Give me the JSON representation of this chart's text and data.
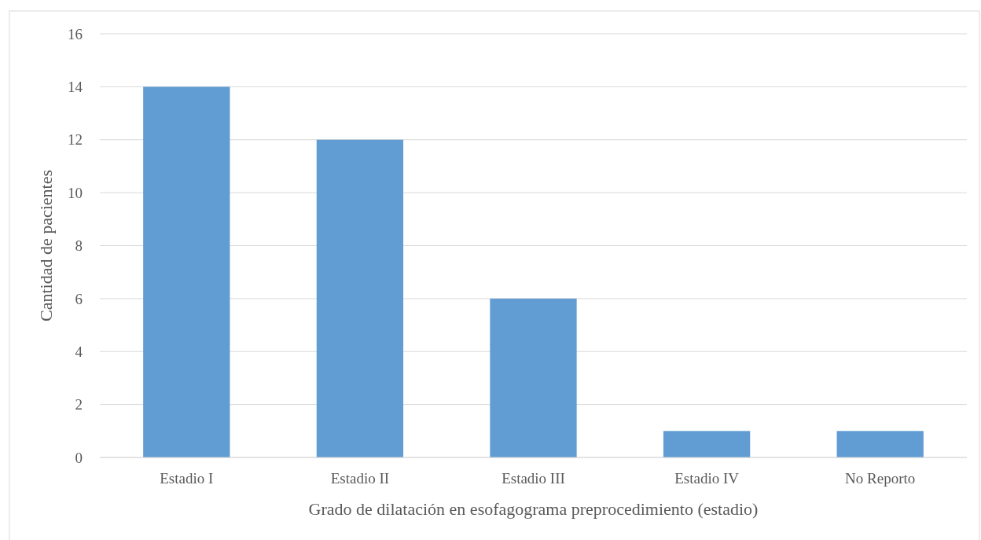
{
  "chart_data": {
    "type": "bar",
    "xlabel": "Grado de dilatación en esofagograma preprocedimiento (estadio)",
    "ylabel": "Cantidad de pacientes",
    "categories": [
      "Estadio I",
      "Estadio II",
      "Estadio III",
      "Estadio IV",
      "No Reporto"
    ],
    "values": [
      14,
      12,
      6,
      1,
      1
    ],
    "color": "#619dd2",
    "ylim": [
      0,
      16
    ],
    "yticks": [
      0,
      2,
      4,
      6,
      8,
      10,
      12,
      14,
      16
    ],
    "grid": "y"
  }
}
